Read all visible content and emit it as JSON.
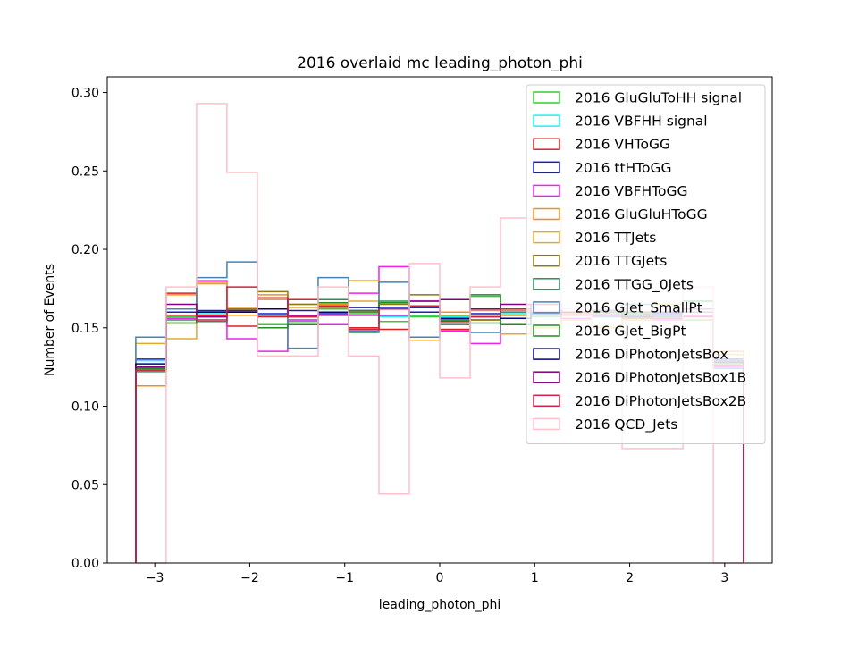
{
  "chart_data": {
    "type": "step-histogram",
    "title": "2016 overlaid mc leading_photon_phi",
    "xlabel": "leading_photon_phi",
    "ylabel": "Number of Events",
    "xlim": [
      -3.5,
      3.5
    ],
    "ylim": [
      0,
      0.31
    ],
    "x_ticks": [
      "−3",
      "−2",
      "−1",
      "0",
      "1",
      "2",
      "3"
    ],
    "y_ticks": [
      "0.00",
      "0.05",
      "0.10",
      "0.15",
      "0.20",
      "0.25",
      "0.30"
    ],
    "legend_position": "upper-right",
    "bin_edges": [
      -3.2,
      -2.88,
      -2.56,
      -2.24,
      -1.92,
      -1.6,
      -1.28,
      -0.96,
      -0.64,
      -0.32,
      0,
      0.32,
      0.64,
      0.96,
      1.28,
      1.6,
      1.92,
      2.24,
      2.56,
      2.88,
      3.2
    ],
    "series": [
      {
        "name": "2016 GluGluToHH signal",
        "color": "#33cc33",
        "values": [
          0.124,
          0.157,
          0.16,
          0.161,
          0.152,
          0.154,
          0.162,
          0.159,
          0.154,
          0.157,
          0.155,
          0.17,
          0.158,
          0.157,
          0.16,
          0.158,
          0.156,
          0.16,
          0.155,
          0.127
        ]
      },
      {
        "name": "2016 VBFHH signal",
        "color": "#22eeee",
        "values": [
          0.129,
          0.16,
          0.159,
          0.16,
          0.158,
          0.155,
          0.16,
          0.158,
          0.157,
          0.16,
          0.157,
          0.162,
          0.159,
          0.158,
          0.16,
          0.157,
          0.158,
          0.159,
          0.158,
          0.128
        ]
      },
      {
        "name": "2016 VHToGG",
        "color": "#dd2222",
        "values": [
          0.125,
          0.172,
          0.158,
          0.151,
          0.157,
          0.168,
          0.158,
          0.15,
          0.149,
          0.16,
          0.149,
          0.155,
          0.156,
          0.16,
          0.162,
          0.158,
          0.157,
          0.156,
          0.158,
          0.125
        ]
      },
      {
        "name": "2016 ttHToGG",
        "color": "#1a1acc",
        "values": [
          0.13,
          0.16,
          0.161,
          0.158,
          0.159,
          0.161,
          0.159,
          0.161,
          0.163,
          0.16,
          0.158,
          0.159,
          0.158,
          0.16,
          0.159,
          0.161,
          0.16,
          0.159,
          0.16,
          0.13
        ]
      },
      {
        "name": "2016 VBFHToGG",
        "color": "#ee22ee",
        "values": [
          0.124,
          0.156,
          0.18,
          0.143,
          0.135,
          0.155,
          0.152,
          0.172,
          0.189,
          0.167,
          0.148,
          0.14,
          0.158,
          0.16,
          0.156,
          0.158,
          0.16,
          0.155,
          0.162,
          0.125
        ]
      },
      {
        "name": "2016 GluGluHToGG",
        "color": "#f0901a",
        "values": [
          0.113,
          0.171,
          0.179,
          0.158,
          0.171,
          0.165,
          0.165,
          0.18,
          0.158,
          0.158,
          0.16,
          0.161,
          0.161,
          0.16,
          0.159,
          0.16,
          0.16,
          0.16,
          0.16,
          0.135
        ]
      },
      {
        "name": "2016 TTJets",
        "color": "#ddaa33",
        "values": [
          0.14,
          0.143,
          0.178,
          0.163,
          0.168,
          0.163,
          0.158,
          0.167,
          0.158,
          0.142,
          0.153,
          0.162,
          0.146,
          0.15,
          0.155,
          0.15,
          0.155,
          0.165,
          0.16,
          0.133
        ]
      },
      {
        "name": "2016 TTGJets",
        "color": "#8b7a10",
        "values": [
          0.123,
          0.153,
          0.157,
          0.162,
          0.173,
          0.165,
          0.163,
          0.16,
          0.165,
          0.171,
          0.158,
          0.155,
          0.158,
          0.16,
          0.158,
          0.16,
          0.156,
          0.158,
          0.16,
          0.128
        ]
      },
      {
        "name": "2016 TTGG_0Jets",
        "color": "#2e8b57",
        "values": [
          0.122,
          0.155,
          0.154,
          0.16,
          0.15,
          0.152,
          0.168,
          0.147,
          0.167,
          0.158,
          0.155,
          0.153,
          0.152,
          0.158,
          0.16,
          0.159,
          0.158,
          0.157,
          0.16,
          0.129
        ]
      },
      {
        "name": "2016 GJet_SmallPt",
        "color": "#4682b4",
        "values": [
          0.144,
          0.162,
          0.182,
          0.192,
          0.158,
          0.137,
          0.182,
          0.148,
          0.179,
          0.144,
          0.152,
          0.147,
          0.16,
          0.158,
          0.158,
          0.157,
          0.165,
          0.16,
          0.158,
          0.124
        ]
      },
      {
        "name": "2016 GJet_BigPt",
        "color": "#228b22",
        "values": [
          0.124,
          0.153,
          0.157,
          0.16,
          0.15,
          0.152,
          0.166,
          0.161,
          0.166,
          0.163,
          0.155,
          0.171,
          0.152,
          0.159,
          0.158,
          0.158,
          0.159,
          0.16,
          0.167,
          0.128
        ]
      },
      {
        "name": "2016 DiPhotonJetsBox",
        "color": "#000080",
        "values": [
          0.127,
          0.158,
          0.16,
          0.16,
          0.162,
          0.157,
          0.16,
          0.163,
          0.162,
          0.163,
          0.156,
          0.157,
          0.156,
          0.159,
          0.16,
          0.158,
          0.157,
          0.158,
          0.158,
          0.126
        ]
      },
      {
        "name": "2016 DiPhotonJetsBox1B",
        "color": "#800080",
        "values": [
          0.125,
          0.165,
          0.157,
          0.161,
          0.169,
          0.158,
          0.158,
          0.158,
          0.158,
          0.167,
          0.168,
          0.162,
          0.165,
          0.16,
          0.16,
          0.158,
          0.157,
          0.16,
          0.158,
          0.128
        ]
      },
      {
        "name": "2016 DiPhotonJetsBox2B",
        "color": "#cc2244",
        "values": [
          0.123,
          0.158,
          0.155,
          0.176,
          0.169,
          0.157,
          0.164,
          0.149,
          0.162,
          0.164,
          0.154,
          0.157,
          0.162,
          0.165,
          0.158,
          0.161,
          0.16,
          0.156,
          0.157,
          0.126
        ]
      },
      {
        "name": "2016 QCD_Jets",
        "color": "#ffc0cb",
        "values": [
          0.0,
          0.176,
          0.293,
          0.249,
          0.132,
          0.132,
          0.176,
          0.132,
          0.044,
          0.191,
          0.118,
          0.176,
          0.22,
          0.22,
          0.162,
          0.132,
          0.073,
          0.073,
          0.176,
          0.0
        ]
      }
    ]
  }
}
